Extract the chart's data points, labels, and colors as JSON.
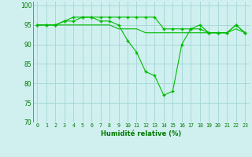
{
  "xlabel": "Humidité relative (%)",
  "background_color": "#d0f0f0",
  "grid_color": "#a8d8d8",
  "line_color": "#00bb00",
  "xlim": [
    -0.5,
    23.5
  ],
  "ylim": [
    70,
    101
  ],
  "yticks": [
    70,
    75,
    80,
    85,
    90,
    95,
    100
  ],
  "xticks": [
    0,
    1,
    2,
    3,
    4,
    5,
    6,
    7,
    8,
    9,
    10,
    11,
    12,
    13,
    14,
    15,
    16,
    17,
    18,
    19,
    20,
    21,
    22,
    23
  ],
  "series1_x": [
    0,
    1,
    2,
    3,
    4,
    5,
    6,
    7,
    8,
    9,
    10,
    11,
    12,
    13,
    14,
    15,
    16,
    17,
    18,
    19,
    20,
    21,
    22,
    23
  ],
  "series1_y": [
    95,
    95,
    95,
    96,
    96,
    97,
    97,
    97,
    97,
    97,
    97,
    97,
    97,
    97,
    94,
    94,
    94,
    94,
    94,
    93,
    93,
    93,
    95,
    93
  ],
  "series2_x": [
    0,
    1,
    2,
    3,
    4,
    5,
    6,
    7,
    8,
    9,
    10,
    11,
    12,
    13,
    14,
    15,
    16,
    17,
    18,
    19,
    20,
    21,
    22,
    23
  ],
  "series2_y": [
    95,
    95,
    95,
    96,
    97,
    97,
    97,
    96,
    96,
    95,
    91,
    88,
    83,
    82,
    77,
    78,
    90,
    94,
    95,
    93,
    93,
    93,
    95,
    93
  ],
  "series3_x": [
    0,
    1,
    2,
    3,
    4,
    5,
    6,
    7,
    8,
    9,
    10,
    11,
    12,
    13,
    14,
    15,
    16,
    17,
    18,
    19,
    20,
    21,
    22,
    23
  ],
  "series3_y": [
    95,
    95,
    95,
    95,
    95,
    95,
    95,
    95,
    95,
    94,
    94,
    94,
    93,
    93,
    93,
    93,
    93,
    93,
    93,
    93,
    93,
    93,
    94,
    93
  ]
}
